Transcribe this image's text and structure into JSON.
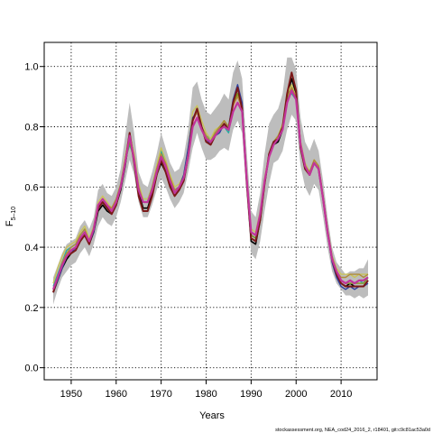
{
  "chart_data": {
    "type": "line",
    "title": "",
    "xlabel": "Years",
    "ylabel": "F",
    "ylabel_subscript": "5–10",
    "footer": "stockassessment.org, NEA_cod24_2016_2, r18401, git:c9c81ac53a0d",
    "xlim": [
      1944,
      2018
    ],
    "ylim": [
      -0.04,
      1.08
    ],
    "xticks": [
      1950,
      1960,
      1970,
      1980,
      1990,
      2000,
      2010
    ],
    "xtick_labels": [
      "1950",
      "1960",
      "1970",
      "1980",
      "1990",
      "2000",
      "2010"
    ],
    "yticks": [
      0.0,
      0.2,
      0.4,
      0.6,
      0.8,
      1.0
    ],
    "ytick_labels": [
      "0.0",
      "0.2",
      "0.4",
      "0.6",
      "0.8",
      "1.0"
    ],
    "grid": true,
    "x": [
      1946,
      1947,
      1948,
      1949,
      1950,
      1951,
      1952,
      1953,
      1954,
      1955,
      1956,
      1957,
      1958,
      1959,
      1960,
      1961,
      1962,
      1963,
      1964,
      1965,
      1966,
      1967,
      1968,
      1969,
      1970,
      1971,
      1972,
      1973,
      1974,
      1975,
      1976,
      1977,
      1978,
      1979,
      1980,
      1981,
      1982,
      1983,
      1984,
      1985,
      1986,
      1987,
      1988,
      1989,
      1990,
      1991,
      1992,
      1993,
      1994,
      1995,
      1996,
      1997,
      1998,
      1999,
      2000,
      2001,
      2002,
      2003,
      2004,
      2005,
      2006,
      2007,
      2008,
      2009,
      2010,
      2011,
      2012,
      2013,
      2014,
      2015,
      2016
    ],
    "band": {
      "lower": [
        0.21,
        0.26,
        0.3,
        0.32,
        0.34,
        0.35,
        0.38,
        0.4,
        0.37,
        0.41,
        0.47,
        0.5,
        0.48,
        0.47,
        0.5,
        0.55,
        0.62,
        0.69,
        0.64,
        0.55,
        0.5,
        0.5,
        0.54,
        0.59,
        0.63,
        0.6,
        0.56,
        0.53,
        0.55,
        0.58,
        0.65,
        0.73,
        0.78,
        0.73,
        0.69,
        0.69,
        0.7,
        0.72,
        0.73,
        0.72,
        0.79,
        0.82,
        0.78,
        0.57,
        0.38,
        0.36,
        0.42,
        0.52,
        0.61,
        0.68,
        0.69,
        0.72,
        0.79,
        0.84,
        0.82,
        0.67,
        0.6,
        0.57,
        0.61,
        0.59,
        0.5,
        0.4,
        0.32,
        0.28,
        0.26,
        0.24,
        0.24,
        0.23,
        0.24,
        0.23,
        0.24
      ],
      "upper": [
        0.3,
        0.34,
        0.38,
        0.41,
        0.42,
        0.43,
        0.47,
        0.49,
        0.46,
        0.5,
        0.59,
        0.61,
        0.58,
        0.57,
        0.6,
        0.66,
        0.77,
        0.88,
        0.78,
        0.65,
        0.61,
        0.6,
        0.65,
        0.71,
        0.78,
        0.73,
        0.68,
        0.65,
        0.66,
        0.7,
        0.79,
        0.93,
        0.95,
        0.89,
        0.85,
        0.84,
        0.86,
        0.88,
        0.91,
        0.89,
        0.98,
        1.02,
        0.96,
        0.72,
        0.52,
        0.5,
        0.58,
        0.71,
        0.81,
        0.84,
        0.86,
        0.91,
        1.03,
        1.03,
        0.99,
        0.83,
        0.75,
        0.72,
        0.76,
        0.72,
        0.62,
        0.5,
        0.4,
        0.35,
        0.33,
        0.31,
        0.32,
        0.32,
        0.33,
        0.33,
        0.36
      ]
    },
    "series": [
      {
        "color": "#000000",
        "width": 1.6,
        "values": [
          0.25,
          0.29,
          0.33,
          0.36,
          0.38,
          0.39,
          0.42,
          0.44,
          0.41,
          0.45,
          0.52,
          0.54,
          0.52,
          0.51,
          0.54,
          0.59,
          0.67,
          0.77,
          0.69,
          0.58,
          0.53,
          0.53,
          0.58,
          0.64,
          0.68,
          0.65,
          0.61,
          0.58,
          0.59,
          0.62,
          0.7,
          0.82,
          0.85,
          0.8,
          0.76,
          0.75,
          0.78,
          0.79,
          0.81,
          0.79,
          0.87,
          0.93,
          0.86,
          0.62,
          0.42,
          0.41,
          0.49,
          0.61,
          0.71,
          0.74,
          0.75,
          0.79,
          0.9,
          0.96,
          0.91,
          0.73,
          0.66,
          0.64,
          0.68,
          0.66,
          0.56,
          0.45,
          0.36,
          0.31,
          0.28,
          0.27,
          0.28,
          0.27,
          0.27,
          0.27,
          0.29
        ]
      },
      {
        "color": "#2aa9a0",
        "width": 1.4,
        "values": [
          0.27,
          0.31,
          0.35,
          0.39,
          0.4,
          0.41,
          0.44,
          0.46,
          0.42,
          0.47,
          0.54,
          0.56,
          0.54,
          0.53,
          0.56,
          0.61,
          0.69,
          0.74,
          0.7,
          0.6,
          0.56,
          0.56,
          0.6,
          0.66,
          0.72,
          0.68,
          0.63,
          0.59,
          0.6,
          0.63,
          0.71,
          0.8,
          0.84,
          0.79,
          0.77,
          0.76,
          0.78,
          0.8,
          0.8,
          0.78,
          0.86,
          0.88,
          0.85,
          0.63,
          0.45,
          0.44,
          0.51,
          0.62,
          0.7,
          0.74,
          0.76,
          0.8,
          0.9,
          0.91,
          0.89,
          0.74,
          0.67,
          0.65,
          0.68,
          0.66,
          0.56,
          0.45,
          0.36,
          0.32,
          0.29,
          0.28,
          0.29,
          0.28,
          0.29,
          0.28,
          0.3
        ]
      },
      {
        "color": "#f2a7c8",
        "width": 1.4,
        "values": [
          0.26,
          0.3,
          0.34,
          0.37,
          0.39,
          0.4,
          0.43,
          0.45,
          0.41,
          0.46,
          0.55,
          0.57,
          0.55,
          0.52,
          0.55,
          0.6,
          0.68,
          0.76,
          0.7,
          0.59,
          0.55,
          0.55,
          0.59,
          0.65,
          0.7,
          0.67,
          0.62,
          0.58,
          0.6,
          0.63,
          0.71,
          0.81,
          0.84,
          0.8,
          0.77,
          0.75,
          0.78,
          0.79,
          0.81,
          0.79,
          0.86,
          0.9,
          0.86,
          0.63,
          0.44,
          0.43,
          0.5,
          0.61,
          0.7,
          0.74,
          0.76,
          0.79,
          0.89,
          0.93,
          0.89,
          0.74,
          0.66,
          0.64,
          0.68,
          0.66,
          0.55,
          0.45,
          0.36,
          0.31,
          0.29,
          0.28,
          0.28,
          0.28,
          0.28,
          0.28,
          0.3
        ]
      },
      {
        "color": "#c9c45a",
        "width": 1.4,
        "values": [
          0.28,
          0.33,
          0.37,
          0.4,
          0.41,
          0.42,
          0.45,
          0.47,
          0.43,
          0.47,
          0.55,
          0.57,
          0.55,
          0.53,
          0.56,
          0.61,
          0.7,
          0.78,
          0.71,
          0.61,
          0.56,
          0.56,
          0.6,
          0.67,
          0.73,
          0.69,
          0.64,
          0.6,
          0.61,
          0.64,
          0.72,
          0.85,
          0.87,
          0.82,
          0.78,
          0.76,
          0.79,
          0.8,
          0.82,
          0.8,
          0.88,
          0.91,
          0.87,
          0.64,
          0.46,
          0.45,
          0.52,
          0.63,
          0.71,
          0.75,
          0.77,
          0.81,
          0.91,
          0.94,
          0.9,
          0.75,
          0.68,
          0.65,
          0.69,
          0.67,
          0.57,
          0.46,
          0.37,
          0.33,
          0.31,
          0.31,
          0.31,
          0.3,
          0.31,
          0.31,
          0.31
        ]
      },
      {
        "color": "#2c3e9e",
        "width": 1.4,
        "values": [
          0.25,
          0.29,
          0.33,
          0.37,
          0.38,
          0.4,
          0.42,
          0.44,
          0.41,
          0.45,
          0.53,
          0.55,
          0.53,
          0.52,
          0.55,
          0.6,
          0.68,
          0.76,
          0.69,
          0.59,
          0.55,
          0.55,
          0.59,
          0.65,
          0.7,
          0.67,
          0.62,
          0.59,
          0.6,
          0.64,
          0.73,
          0.83,
          0.85,
          0.79,
          0.76,
          0.74,
          0.77,
          0.78,
          0.81,
          0.8,
          0.89,
          0.94,
          0.88,
          0.63,
          0.44,
          0.43,
          0.5,
          0.61,
          0.7,
          0.74,
          0.76,
          0.79,
          0.89,
          0.93,
          0.89,
          0.73,
          0.66,
          0.64,
          0.68,
          0.66,
          0.56,
          0.45,
          0.35,
          0.3,
          0.27,
          0.26,
          0.27,
          0.26,
          0.27,
          0.27,
          0.28
        ]
      },
      {
        "color": "#7a9a1e",
        "width": 1.4,
        "values": [
          0.26,
          0.3,
          0.34,
          0.38,
          0.39,
          0.4,
          0.43,
          0.45,
          0.42,
          0.46,
          0.53,
          0.55,
          0.53,
          0.52,
          0.55,
          0.6,
          0.68,
          0.75,
          0.69,
          0.59,
          0.55,
          0.55,
          0.6,
          0.66,
          0.71,
          0.67,
          0.62,
          0.58,
          0.59,
          0.63,
          0.71,
          0.82,
          0.85,
          0.8,
          0.77,
          0.75,
          0.78,
          0.8,
          0.82,
          0.8,
          0.87,
          0.91,
          0.86,
          0.63,
          0.44,
          0.43,
          0.5,
          0.62,
          0.7,
          0.74,
          0.76,
          0.79,
          0.89,
          0.93,
          0.89,
          0.74,
          0.67,
          0.64,
          0.68,
          0.66,
          0.56,
          0.45,
          0.36,
          0.31,
          0.29,
          0.28,
          0.28,
          0.28,
          0.28,
          0.28,
          0.3
        ]
      },
      {
        "color": "#b08c3a",
        "width": 1.4,
        "values": [
          0.26,
          0.3,
          0.35,
          0.38,
          0.4,
          0.41,
          0.44,
          0.46,
          0.42,
          0.46,
          0.53,
          0.56,
          0.54,
          0.53,
          0.56,
          0.61,
          0.69,
          0.77,
          0.7,
          0.6,
          0.55,
          0.55,
          0.6,
          0.66,
          0.71,
          0.68,
          0.63,
          0.59,
          0.6,
          0.63,
          0.71,
          0.82,
          0.85,
          0.8,
          0.77,
          0.75,
          0.78,
          0.8,
          0.82,
          0.8,
          0.87,
          0.9,
          0.86,
          0.64,
          0.45,
          0.44,
          0.51,
          0.62,
          0.71,
          0.75,
          0.77,
          0.8,
          0.9,
          0.93,
          0.9,
          0.75,
          0.67,
          0.65,
          0.69,
          0.67,
          0.57,
          0.46,
          0.37,
          0.32,
          0.3,
          0.3,
          0.31,
          0.31,
          0.31,
          0.3,
          0.31
        ]
      },
      {
        "color": "#7b1818",
        "width": 2.0,
        "values": [
          0.25,
          0.3,
          0.34,
          0.37,
          0.38,
          0.39,
          0.42,
          0.44,
          0.41,
          0.46,
          0.53,
          0.55,
          0.53,
          0.51,
          0.54,
          0.6,
          0.68,
          0.78,
          0.68,
          0.57,
          0.52,
          0.52,
          0.57,
          0.64,
          0.69,
          0.65,
          0.6,
          0.57,
          0.59,
          0.62,
          0.7,
          0.82,
          0.86,
          0.8,
          0.75,
          0.74,
          0.77,
          0.79,
          0.81,
          0.79,
          0.88,
          0.93,
          0.86,
          0.62,
          0.43,
          0.42,
          0.49,
          0.61,
          0.71,
          0.75,
          0.76,
          0.8,
          0.91,
          0.98,
          0.92,
          0.73,
          0.66,
          0.64,
          0.68,
          0.66,
          0.56,
          0.45,
          0.36,
          0.31,
          0.28,
          0.27,
          0.27,
          0.27,
          0.27,
          0.27,
          0.29
        ]
      },
      {
        "color": "#c1359b",
        "width": 2.2,
        "values": [
          0.26,
          0.3,
          0.34,
          0.37,
          0.39,
          0.4,
          0.43,
          0.45,
          0.42,
          0.46,
          0.54,
          0.56,
          0.54,
          0.52,
          0.55,
          0.6,
          0.68,
          0.77,
          0.69,
          0.59,
          0.55,
          0.55,
          0.59,
          0.65,
          0.7,
          0.67,
          0.62,
          0.58,
          0.6,
          0.63,
          0.7,
          0.8,
          0.83,
          0.79,
          0.76,
          0.75,
          0.77,
          0.79,
          0.8,
          0.79,
          0.85,
          0.88,
          0.85,
          0.63,
          0.45,
          0.44,
          0.51,
          0.62,
          0.7,
          0.74,
          0.76,
          0.79,
          0.88,
          0.92,
          0.89,
          0.74,
          0.67,
          0.64,
          0.68,
          0.66,
          0.56,
          0.45,
          0.36,
          0.32,
          0.29,
          0.28,
          0.29,
          0.28,
          0.29,
          0.29,
          0.3
        ]
      }
    ]
  }
}
